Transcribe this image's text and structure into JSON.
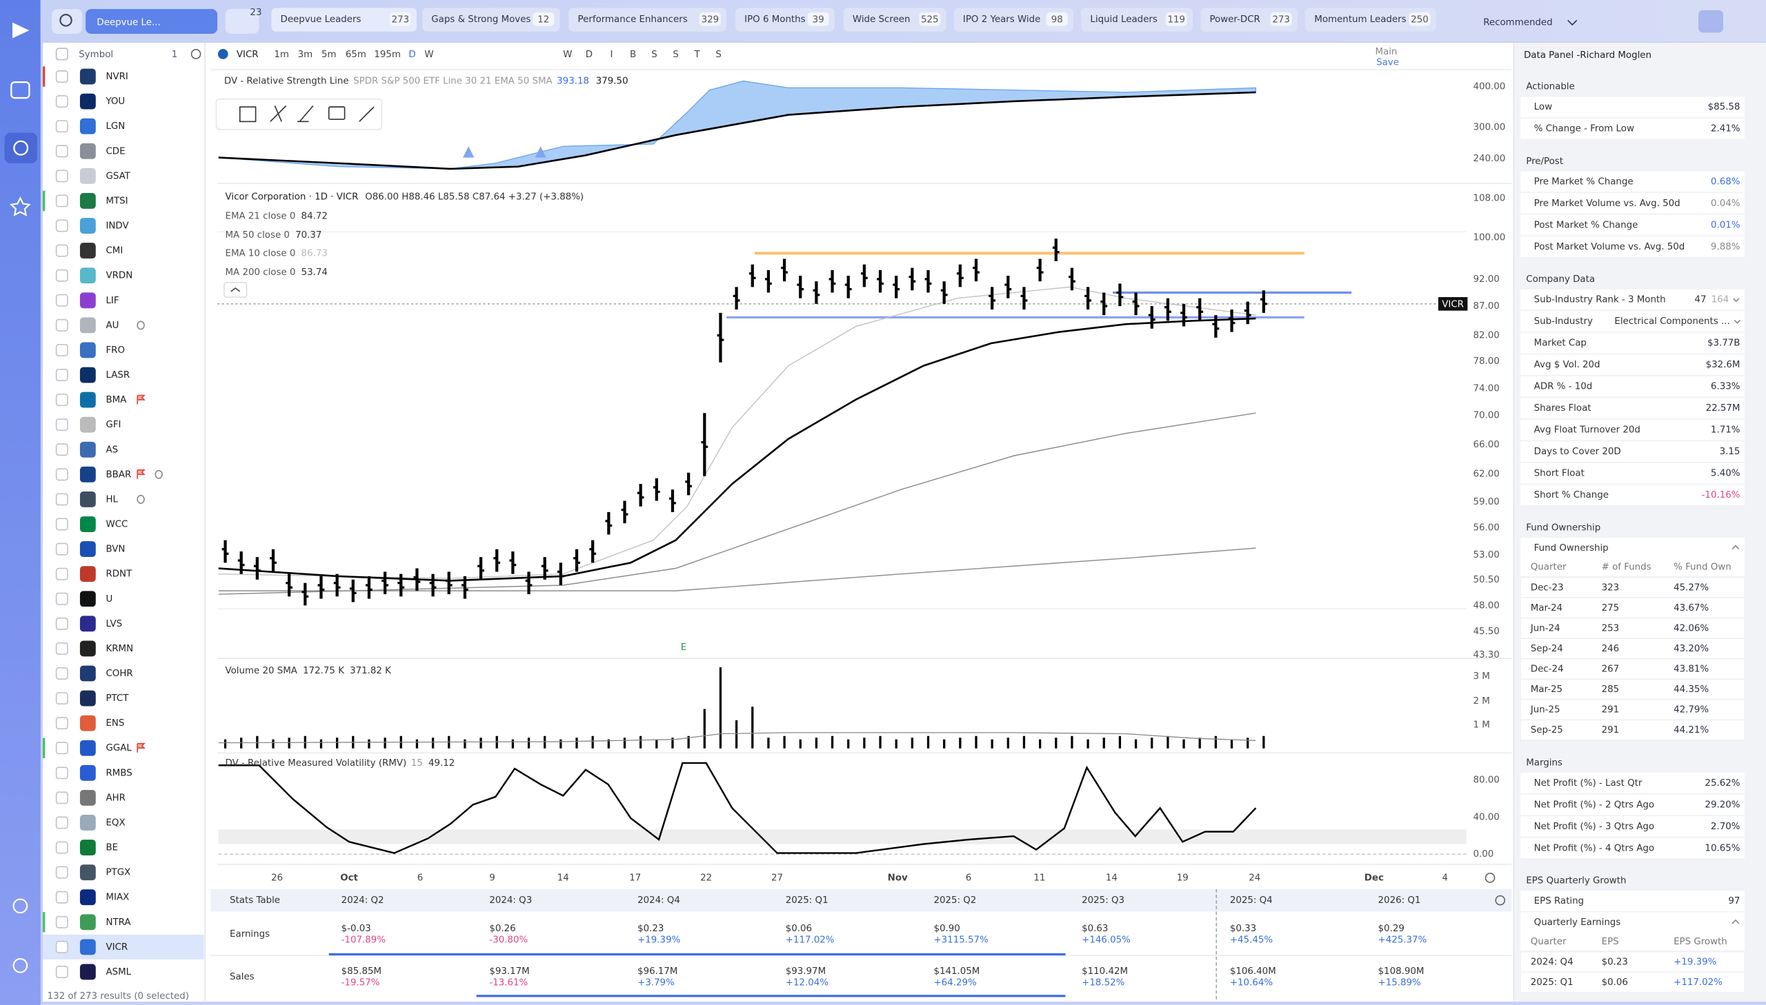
{
  "top_bar": {
    "watchlist": "Deepvue Le...",
    "badge": "23",
    "tabs": [
      {
        "label": "Deepvue Leaders",
        "count": "273"
      },
      {
        "label": "Gaps & Strong Moves",
        "count": "12"
      },
      {
        "label": "Performance Enhancers",
        "count": "329"
      },
      {
        "label": "IPO 6 Months",
        "count": "39"
      },
      {
        "label": "Wide Screen",
        "count": "525"
      },
      {
        "label": "IPO 2 Years Wide",
        "count": "98"
      },
      {
        "label": "Liquid Leaders",
        "count": "119"
      },
      {
        "label": "Power-DCR",
        "count": "273"
      },
      {
        "label": "Momentum Leaders",
        "count": "250"
      }
    ],
    "sort": "Recommended"
  },
  "symbol_list": {
    "header": "Symbol",
    "count": "1",
    "symbols": [
      "NVRI",
      "YOU",
      "LGN",
      "CDE",
      "GSAT",
      "MTSI",
      "INDV",
      "CMI",
      "VRDN",
      "LIF",
      "AU",
      "FRO",
      "LASR",
      "BMA",
      "GFI",
      "AS",
      "BBAR",
      "HL",
      "WCC",
      "BVN",
      "RDNT",
      "U",
      "LVS",
      "KRMN",
      "COHR",
      "PTCT",
      "ENS",
      "GGAL",
      "RMBS",
      "AHR",
      "EQX",
      "BE",
      "PTGX",
      "MIAX",
      "NTRA",
      "VICR",
      "ASML"
    ],
    "footer": "132 of 273 results (0 selected)"
  },
  "toolbar": {
    "symbol": "VICR",
    "intervals": [
      "1m",
      "3m",
      "5m",
      "65m",
      "195m",
      "D",
      "W"
    ],
    "session_buttons": [
      "W",
      "D",
      "I",
      "B",
      "S",
      "S",
      "T",
      "S"
    ],
    "layout": "Main",
    "save": "Save"
  },
  "rs_pane": {
    "title": "DV - Relative Strength Line",
    "params": "SPDR S&P 500 ETF Line 30 21 EMA 50 SMA",
    "value_1": "393.18",
    "value_2": "379.50",
    "axis": [
      "400.00",
      "300.00",
      "240.00"
    ]
  },
  "price_pane": {
    "title": "Vicor Corporation · 1D · VICR",
    "ohlc": "O86.00 H88.46 L85.58 C87.64 +3.27 (+3.88%)",
    "studies": [
      {
        "label": "EMA 21 close 0",
        "value": "84.72"
      },
      {
        "label": "MA 50 close 0",
        "value": "70.37"
      },
      {
        "label": "EMA 10 close 0",
        "value": "86.73"
      },
      {
        "label": "MA 200 close 0",
        "value": "53.74"
      }
    ],
    "axis": [
      "108.00",
      "100.00",
      "92.00",
      "87.00",
      "82.00",
      "78.00",
      "74.00",
      "70.00",
      "66.00",
      "62.00",
      "59.00",
      "56.00",
      "53.00",
      "50.50",
      "48.00",
      "45.50",
      "43.30"
    ],
    "last_label": "VICR",
    "earnings_marker": "E"
  },
  "volume_pane": {
    "title": "Volume 20 SMA",
    "value_1": "172.75 K",
    "value_2": "371.82 K",
    "axis": [
      "3 M",
      "2 M",
      "1 M"
    ]
  },
  "rmv_pane": {
    "title": "DV - Relative Measured Volatility (RMV)",
    "param": "15",
    "value": "49.12",
    "axis": [
      "80.00",
      "40.00",
      "0.00"
    ]
  },
  "time_axis": [
    "26",
    "Oct",
    "6",
    "9",
    "14",
    "17",
    "22",
    "27",
    "Nov",
    "6",
    "11",
    "14",
    "19",
    "24",
    "Dec",
    "4"
  ],
  "stats_table": {
    "title": "Stats Table",
    "periods": [
      "2024: Q2",
      "2024: Q3",
      "2024: Q4",
      "2025: Q1",
      "2025: Q2",
      "2025: Q3",
      "2025: Q4",
      "2026: Q1"
    ],
    "rows": [
      {
        "label": "Earnings",
        "cells": [
          {
            "value": "$-0.03",
            "change": "-107.89%"
          },
          {
            "value": "$0.26",
            "change": "-30.80%"
          },
          {
            "value": "$0.23",
            "change": "+19.39%"
          },
          {
            "value": "$0.06",
            "change": "+117.02%"
          },
          {
            "value": "$0.90",
            "change": "+3115.57%"
          },
          {
            "value": "$0.63",
            "change": "+146.05%"
          },
          {
            "value": "$0.33",
            "change": "+45.45%"
          },
          {
            "value": "$0.29",
            "change": "+425.37%"
          }
        ]
      },
      {
        "label": "Sales",
        "cells": [
          {
            "value": "$85.85M",
            "change": "-19.57%"
          },
          {
            "value": "$93.17M",
            "change": "-13.61%"
          },
          {
            "value": "$96.17M",
            "change": "+3.79%"
          },
          {
            "value": "$93.97M",
            "change": "+12.04%"
          },
          {
            "value": "$141.05M",
            "change": "+64.29%"
          },
          {
            "value": "$110.42M",
            "change": "+18.52%"
          },
          {
            "value": "$106.40M",
            "change": "+10.64%"
          },
          {
            "value": "$108.90M",
            "change": "+15.89%"
          }
        ]
      }
    ]
  },
  "data_panel": {
    "title": "Data Panel -Richard Moglen",
    "sections": [
      {
        "title": "Actionable",
        "rows": [
          {
            "label": "Low",
            "value": "$85.58"
          },
          {
            "label": "% Change - From Low",
            "value": "2.41%"
          }
        ]
      },
      {
        "title": "Pre/Post",
        "rows": [
          {
            "label": "Pre Market % Change",
            "value": "0.68%"
          },
          {
            "label": "Pre Market Volume vs. Avg. 50d",
            "value": "0.04%"
          },
          {
            "label": "Post Market % Change",
            "value": "0.01%"
          },
          {
            "label": "Post Market Volume vs. Avg. 50d",
            "value": "9.88%"
          }
        ]
      },
      {
        "title": "Company Data",
        "rows": [
          {
            "label": "Sub-Industry Rank - 3 Month",
            "value": "47",
            "extra": "164"
          },
          {
            "label": "Sub-Industry",
            "value": "Electrical Components ..."
          },
          {
            "label": "Market Cap",
            "value": "$3.77B"
          },
          {
            "label": "Avg $ Vol. 20d",
            "value": "$32.6M"
          },
          {
            "label": "ADR % - 10d",
            "value": "6.33%"
          },
          {
            "label": "Shares Float",
            "value": "22.57M"
          },
          {
            "label": "Avg Float Turnover 20d",
            "value": "1.71%"
          },
          {
            "label": "Days to Cover 20D",
            "value": "3.15"
          },
          {
            "label": "Short Float",
            "value": "5.40%"
          },
          {
            "label": "Short % Change",
            "value": "-10.16%"
          }
        ]
      },
      {
        "title": "Fund Ownership",
        "subtitle": "Fund Ownership",
        "columns": [
          "Quarter",
          "# of Funds",
          "% Fund Own"
        ],
        "table": [
          [
            "Dec-23",
            "323",
            "45.27%"
          ],
          [
            "Mar-24",
            "275",
            "43.67%"
          ],
          [
            "Jun-24",
            "253",
            "42.06%"
          ],
          [
            "Sep-24",
            "246",
            "43.20%"
          ],
          [
            "Dec-24",
            "267",
            "43.81%"
          ],
          [
            "Mar-25",
            "285",
            "44.35%"
          ],
          [
            "Jun-25",
            "291",
            "42.79%"
          ],
          [
            "Sep-25",
            "291",
            "44.21%"
          ]
        ]
      },
      {
        "title": "Margins",
        "rows": [
          {
            "label": "Net Profit (%) - Last Qtr",
            "value": "25.62%"
          },
          {
            "label": "Net Profit (%) - 2 Qtrs Ago",
            "value": "29.20%"
          },
          {
            "label": "Net Profit (%) - 3 Qtrs Ago",
            "value": "2.70%"
          },
          {
            "label": "Net Profit (%) - 4 Qtrs Ago",
            "value": "10.65%"
          }
        ]
      },
      {
        "title": "EPS Quarterly Growth",
        "rows": [
          {
            "label": "EPS Rating",
            "value": "97"
          }
        ],
        "subtitle": "Quarterly Earnings",
        "columns": [
          "Quarter",
          "EPS",
          "EPS Growth"
        ],
        "table": [
          [
            "2024: Q4",
            "$0.23",
            "+19.39%"
          ],
          [
            "2025: Q1",
            "$0.06",
            "+117.02%"
          ]
        ]
      }
    ]
  }
}
